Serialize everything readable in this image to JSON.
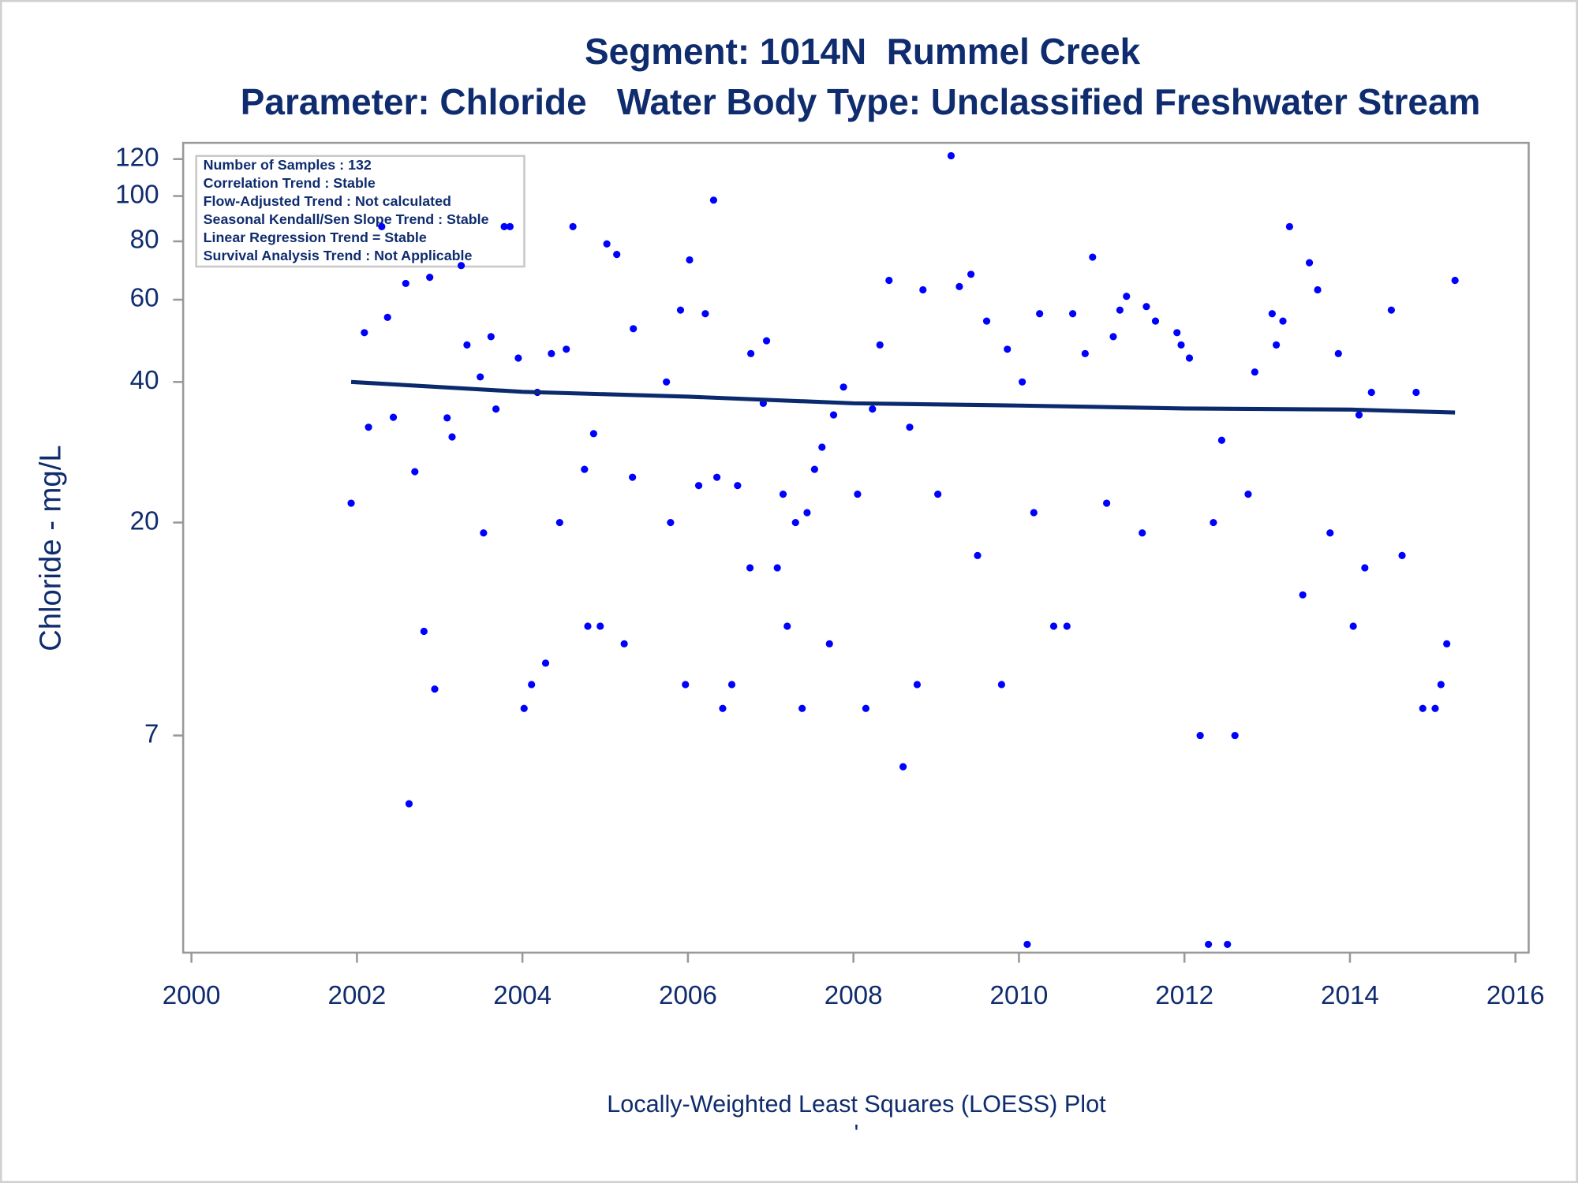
{
  "chart_data": {
    "type": "scatter",
    "title": "Segment: 1014N  Rummel Creek",
    "subtitle": "Parameter: Chloride   Water Body Type: Unclassified Freshwater Stream",
    "y_label": "Chloride - mg/L",
    "caption": "Locally-Weighted Least Squares (LOESS) Plot",
    "footnote": "'",
    "annotations": [
      "Number of Samples : 132",
      "Correlation Trend : Stable",
      "Flow-Adjusted Trend : Not calculated",
      "Seasonal Kendall/Sen Slope Trend : Stable",
      "Linear Regression Trend = Stable",
      "Survival Analysis Trend : Not Applicable"
    ],
    "xlim": [
      1999.9,
      2016.16
    ],
    "xticks": [
      2000,
      2002,
      2004,
      2006,
      2008,
      2010,
      2012,
      2014,
      2016
    ],
    "ylim": [
      2.4,
      130
    ],
    "yticks": [
      7,
      20,
      40,
      60,
      80,
      100,
      120
    ],
    "yscale": "log",
    "series": [
      {
        "type": "scatter",
        "color": "#0000ff",
        "x": [
          2001.93,
          2002.09,
          2002.14,
          2002.3,
          2002.37,
          2002.44,
          2002.59,
          2002.63,
          2002.7,
          2002.81,
          2002.88,
          2002.94,
          2003.09,
          2003.15,
          2003.26,
          2003.33,
          2003.49,
          2003.53,
          2003.62,
          2003.68,
          2003.78,
          2003.85,
          2003.95,
          2004.02,
          2004.11,
          2004.18,
          2004.28,
          2004.35,
          2004.45,
          2004.53,
          2004.61,
          2004.75,
          2004.79,
          2004.86,
          2004.94,
          2005.02,
          2005.14,
          2005.23,
          2005.34,
          2005.33,
          2005.74,
          2005.79,
          2005.91,
          2005.97,
          2006.02,
          2006.13,
          2006.21,
          2006.31,
          2006.35,
          2006.42,
          2006.53,
          2006.6,
          2006.75,
          2006.76,
          2006.91,
          2006.95,
          2007.08,
          2007.15,
          2007.2,
          2007.3,
          2007.38,
          2007.44,
          2007.53,
          2007.62,
          2007.71,
          2007.76,
          2007.88,
          2008.05,
          2008.15,
          2008.23,
          2008.32,
          2008.43,
          2008.6,
          2008.68,
          2008.77,
          2008.84,
          2009.02,
          2009.18,
          2009.28,
          2009.42,
          2009.5,
          2009.61,
          2009.79,
          2009.86,
          2010.04,
          2010.1,
          2010.18,
          2010.25,
          2010.42,
          2010.58,
          2010.65,
          2010.8,
          2010.89,
          2011.06,
          2011.14,
          2011.22,
          2011.3,
          2011.49,
          2011.54,
          2011.65,
          2011.91,
          2011.96,
          2012.06,
          2012.19,
          2012.29,
          2012.35,
          2012.45,
          2012.52,
          2012.61,
          2012.77,
          2012.85,
          2013.06,
          2013.11,
          2013.19,
          2013.27,
          2013.43,
          2013.51,
          2013.61,
          2013.76,
          2013.86,
          2014.04,
          2014.11,
          2014.18,
          2014.26,
          2014.5,
          2014.63,
          2014.8,
          2014.88,
          2015.03,
          2015.1,
          2015.17,
          2015.27
        ],
        "values": [
          22,
          51,
          32,
          86,
          55,
          33.6,
          65,
          5,
          25.7,
          11.7,
          67,
          8.8,
          33.5,
          30.5,
          71,
          48,
          41,
          19,
          50,
          35,
          86,
          86,
          45,
          8,
          9,
          38,
          10,
          46,
          20,
          47,
          86,
          26,
          12,
          31,
          12,
          79,
          75,
          11,
          52,
          25,
          40,
          20,
          57,
          9,
          73,
          24,
          56,
          98,
          25,
          8,
          9,
          24,
          16,
          46,
          36,
          49,
          16,
          23,
          12,
          20,
          8,
          21,
          26,
          29,
          11,
          34,
          39,
          23,
          8,
          35,
          48,
          66,
          6,
          32,
          9,
          63,
          23,
          122,
          64,
          68,
          17,
          54,
          9,
          47,
          40,
          2.5,
          21,
          56,
          12,
          12,
          56,
          46,
          74,
          22,
          50,
          57,
          61,
          19,
          58,
          54,
          51,
          48,
          45,
          7,
          2.5,
          20,
          30,
          2.5,
          7,
          23,
          42,
          56,
          48,
          54,
          86,
          14,
          72,
          63,
          19,
          46,
          12,
          34,
          16,
          38,
          57,
          17,
          38,
          8,
          8,
          9,
          11,
          66
        ]
      },
      {
        "type": "line",
        "color": "#0b2a6e",
        "x": [
          2001.93,
          2004,
          2006,
          2008,
          2010,
          2012,
          2014,
          2015.27
        ],
        "values": [
          40,
          38.1,
          37.2,
          36.0,
          35.6,
          35.1,
          34.9,
          34.4
        ]
      }
    ]
  }
}
